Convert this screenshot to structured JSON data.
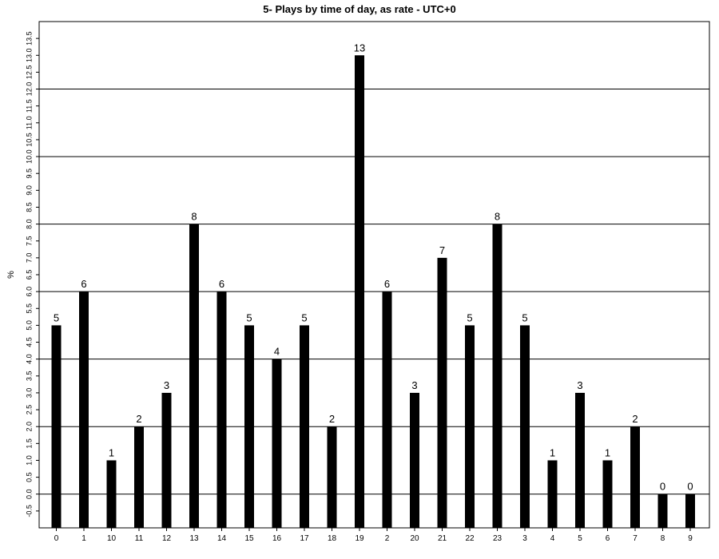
{
  "chart_data": {
    "type": "bar",
    "title": "5- Plays by time of day, as rate - UTC+0",
    "xlabel": "",
    "ylabel": "%",
    "categories": [
      "0",
      "1",
      "10",
      "11",
      "12",
      "13",
      "14",
      "15",
      "16",
      "17",
      "18",
      "19",
      "2",
      "20",
      "21",
      "22",
      "23",
      "3",
      "4",
      "5",
      "6",
      "7",
      "8",
      "9"
    ],
    "values": [
      5,
      6,
      1,
      2,
      3,
      8,
      6,
      5,
      4,
      5,
      2,
      13,
      6,
      3,
      7,
      5,
      8,
      5,
      1,
      3,
      1,
      2,
      0,
      0
    ],
    "data_labels": [
      "5",
      "6",
      "1",
      "2",
      "3",
      "8",
      "6",
      "5",
      "4",
      "5",
      "2",
      "13",
      "6",
      "3",
      "7",
      "5",
      "8",
      "5",
      "1",
      "3",
      "1",
      "2",
      "0",
      "0"
    ],
    "ylim": [
      -1,
      14
    ],
    "y_tick_labels": [
      "-0.5",
      "0.0",
      "0.5",
      "1.0",
      "1.5",
      "2.0",
      "2.5",
      "3.0",
      "3.5",
      "4.0",
      "4.5",
      "5.0",
      "5.5",
      "6.0",
      "6.5",
      "7.0",
      "7.5",
      "8.0",
      "8.5",
      "9.0",
      "9.5",
      "10.0",
      "10.5",
      "11.0",
      "11.5",
      "12.0",
      "12.5",
      "13.0",
      "13.5"
    ],
    "gridlines": [
      0,
      2,
      4,
      6,
      8,
      10,
      12
    ],
    "bar_color": "#000000",
    "grid_color": "#000000",
    "grid": true,
    "legend": "none"
  }
}
